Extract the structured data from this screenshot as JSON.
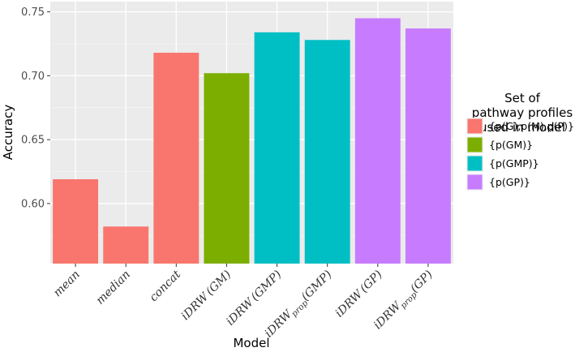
{
  "chart_data": {
    "type": "bar",
    "xlabel": "Model",
    "ylabel": "Accuracy",
    "ylim": [
      0.553,
      0.758
    ],
    "yticks": [
      "0.60",
      "0.65",
      "0.70",
      "0.75"
    ],
    "ytick_values": [
      0.6,
      0.65,
      0.7,
      0.75
    ],
    "grid": true,
    "legend_position": "right",
    "legend_title": [
      "Set of",
      "pathway profiles",
      "used in model"
    ],
    "groups": [
      {
        "label": "{p(G),p(M),p(P)}",
        "color": "#F8766D"
      },
      {
        "label": "{p(GM)}",
        "color": "#7CAE00"
      },
      {
        "label": "{p(GMP)}",
        "color": "#00BFC4"
      },
      {
        "label": "{p(GP)}",
        "color": "#C77CFF"
      }
    ],
    "bars": [
      {
        "category": "mean",
        "sub": "",
        "tail": "",
        "value": 0.619,
        "group": 0
      },
      {
        "category": "median",
        "sub": "",
        "tail": "",
        "value": 0.582,
        "group": 0
      },
      {
        "category": "concat",
        "sub": "",
        "tail": "",
        "value": 0.718,
        "group": 0
      },
      {
        "category": "iDRW",
        "sub": "",
        "tail": "(GM)",
        "value": 0.702,
        "group": 1
      },
      {
        "category": "iDRW",
        "sub": "",
        "tail": "(GMP)",
        "value": 0.734,
        "group": 2
      },
      {
        "category": "iDRW",
        "sub": "prop",
        "tail": "(GMP)",
        "value": 0.728,
        "group": 2
      },
      {
        "category": "iDRW",
        "sub": "",
        "tail": "(GP)",
        "value": 0.745,
        "group": 3
      },
      {
        "category": "iDRW",
        "sub": "prop",
        "tail": "(GP)",
        "value": 0.737,
        "group": 3
      }
    ]
  }
}
